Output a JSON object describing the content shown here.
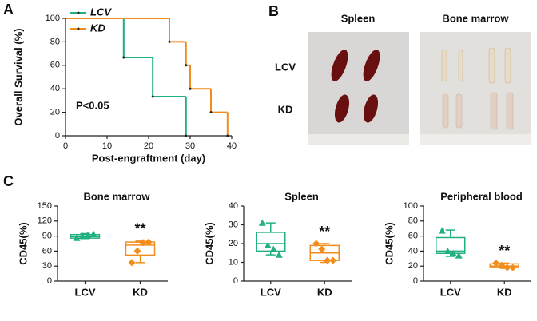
{
  "panel_labels": [
    "A",
    "B",
    "C"
  ],
  "photo_panel": {
    "columns": [
      "Spleen",
      "Bone marrow"
    ],
    "rows": [
      "LCV",
      "KD"
    ]
  },
  "chart_data": [
    {
      "type": "step",
      "xlabel": "Post-engraftment (day)",
      "ylabel": "Overall Survival (%)",
      "annotation": "P<0.05",
      "xlim": [
        0,
        40
      ],
      "xticks": [
        0,
        10,
        20,
        30,
        40
      ],
      "ylim": [
        0,
        100
      ],
      "yticks": [
        0,
        20,
        40,
        60,
        80,
        100
      ],
      "series": [
        {
          "name": "LCV",
          "color": "#21b07f",
          "x": [
            0,
            14,
            21,
            29
          ],
          "values": [
            100,
            66.7,
            33.3,
            0
          ]
        },
        {
          "name": "KD",
          "color": "#f28c1c",
          "x": [
            0,
            25,
            29,
            30,
            35,
            39
          ],
          "values": [
            100,
            80,
            60,
            40,
            20,
            0
          ]
        }
      ]
    },
    {
      "type": "box",
      "title": "Bone marrow",
      "ylabel": "CD45(%)",
      "annotation": "**",
      "categories": [
        "LCV",
        "KD"
      ],
      "ylim": [
        0,
        150
      ],
      "yticks": [
        0,
        30,
        60,
        90,
        120,
        150
      ],
      "boxes": [
        {
          "color": "#21b07f",
          "marker": "triangle",
          "min": 85,
          "q1": 86,
          "median": 89,
          "q3": 93,
          "max": 95,
          "points": [
            86,
            90,
            92,
            94
          ]
        },
        {
          "color": "#f28c1c",
          "marker": "diamond",
          "min": 37,
          "q1": 52,
          "median": 72,
          "q3": 78,
          "max": 80,
          "points": [
            37,
            60,
            77,
            78
          ]
        }
      ]
    },
    {
      "type": "box",
      "title": "Spleen",
      "ylabel": "CD45(%)",
      "annotation": "**",
      "categories": [
        "LCV",
        "KD"
      ],
      "ylim": [
        0,
        40
      ],
      "yticks": [
        0,
        10,
        20,
        30,
        40
      ],
      "boxes": [
        {
          "color": "#21b07f",
          "marker": "triangle",
          "min": 14,
          "q1": 16,
          "median": 20,
          "q3": 26,
          "max": 31,
          "points": [
            31,
            19,
            17,
            14
          ]
        },
        {
          "color": "#f28c1c",
          "marker": "diamond",
          "min": 10,
          "q1": 11,
          "median": 15,
          "q3": 19,
          "max": 20,
          "points": [
            20,
            17,
            11,
            11
          ]
        }
      ]
    },
    {
      "type": "box",
      "title": "Peripheral blood",
      "ylabel": "CD45(%)",
      "annotation": "**",
      "categories": [
        "LCV",
        "KD"
      ],
      "ylim": [
        0,
        100
      ],
      "yticks": [
        0,
        20,
        40,
        60,
        80,
        100
      ],
      "boxes": [
        {
          "color": "#21b07f",
          "marker": "triangle",
          "min": 33,
          "q1": 37,
          "median": 40,
          "q3": 58,
          "max": 68,
          "points": [
            67,
            40,
            37,
            34
          ]
        },
        {
          "color": "#f28c1c",
          "marker": "diamond",
          "min": 17,
          "q1": 18,
          "median": 20,
          "q3": 23,
          "max": 24,
          "points": [
            24,
            21,
            18,
            18
          ]
        }
      ]
    }
  ]
}
